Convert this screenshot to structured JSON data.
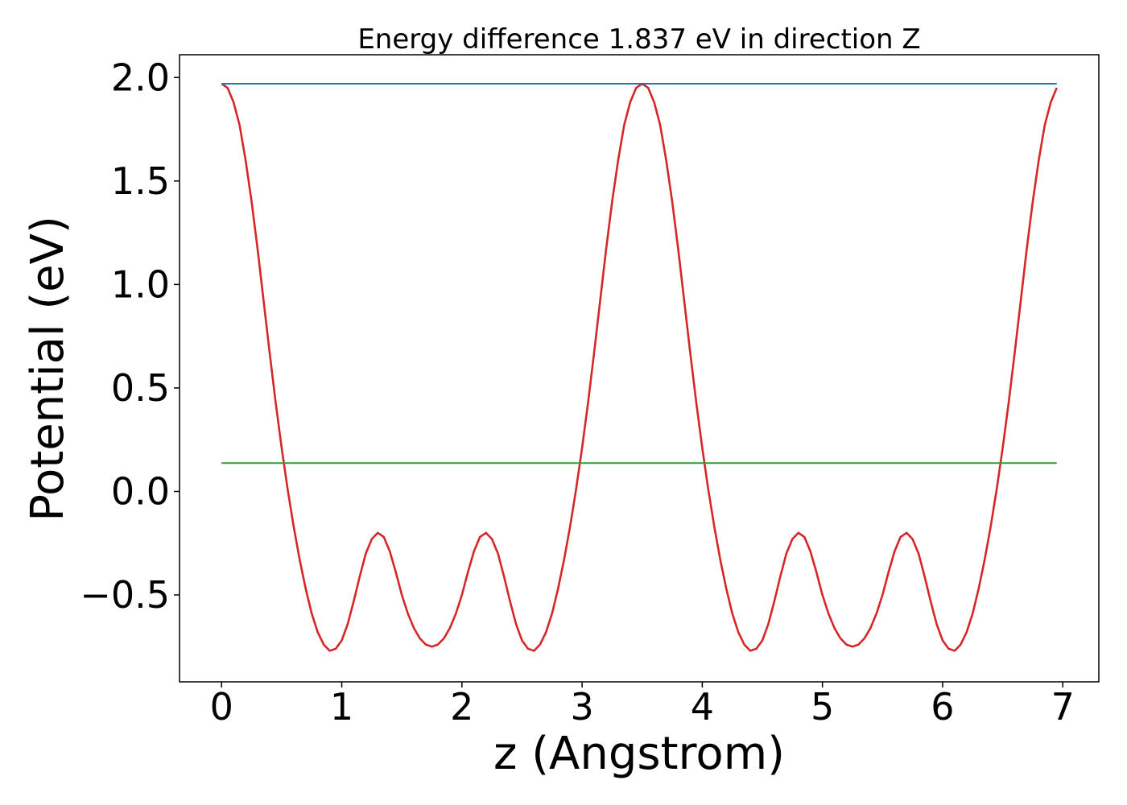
{
  "chart_data": {
    "type": "line",
    "title": "Energy difference 1.837 eV in direction Z",
    "xlabel": "z (Angstrom)",
    "ylabel": "Potential (eV)",
    "xlim": [
      -0.35,
      7.3
    ],
    "ylim": [
      -0.92,
      2.11
    ],
    "x_ticks": [
      0,
      1,
      2,
      3,
      4,
      5,
      6,
      7
    ],
    "x_tick_labels": [
      "0",
      "1",
      "2",
      "3",
      "4",
      "5",
      "6",
      "7"
    ],
    "y_ticks": [
      2.0,
      1.5,
      1.0,
      0.5,
      0.0,
      -0.5
    ],
    "y_tick_labels": [
      "2.0",
      "1.5",
      "1.0",
      "0.5",
      "0.0",
      "−0.5"
    ],
    "grid": false,
    "series": [
      {
        "color": "#d62728",
        "x": [
          0,
          0.05,
          0.1,
          0.15,
          0.2,
          0.25,
          0.3,
          0.35,
          0.4,
          0.45,
          0.5,
          0.55,
          0.6,
          0.65,
          0.7,
          0.75,
          0.8,
          0.85,
          0.9,
          0.95,
          1.0,
          1.05,
          1.1,
          1.15,
          1.2,
          1.25,
          1.3,
          1.35,
          1.4,
          1.45,
          1.5,
          1.55,
          1.6,
          1.65,
          1.7,
          1.75,
          1.8,
          1.85,
          1.9,
          1.95,
          2.0,
          2.05,
          2.1,
          2.15,
          2.2,
          2.25,
          2.3,
          2.35,
          2.4,
          2.45,
          2.5,
          2.55,
          2.6,
          2.65,
          2.7,
          2.75,
          2.8,
          2.85,
          2.9,
          2.95,
          3.0,
          3.05,
          3.1,
          3.15,
          3.2,
          3.25,
          3.3,
          3.35,
          3.4,
          3.45,
          3.5,
          3.55,
          3.6,
          3.65,
          3.7,
          3.75,
          3.8,
          3.85,
          3.9,
          3.95,
          4.0,
          4.05,
          4.1,
          4.15,
          4.2,
          4.25,
          4.3,
          4.35,
          4.4,
          4.45,
          4.5,
          4.55,
          4.6,
          4.65,
          4.7,
          4.75,
          4.8,
          4.85,
          4.9,
          4.95,
          5.0,
          5.05,
          5.1,
          5.15,
          5.2,
          5.25,
          5.3,
          5.35,
          5.4,
          5.45,
          5.5,
          5.55,
          5.6,
          5.65,
          5.7,
          5.75,
          5.8,
          5.85,
          5.9,
          5.95,
          6.0,
          6.05,
          6.1,
          6.15,
          6.2,
          6.25,
          6.3,
          6.35,
          6.4,
          6.45,
          6.5,
          6.55,
          6.6,
          6.65,
          6.7,
          6.75,
          6.8,
          6.85,
          6.9,
          6.95
        ],
        "y": [
          1.97,
          1.95,
          1.88,
          1.77,
          1.6,
          1.4,
          1.17,
          0.92,
          0.67,
          0.43,
          0.21,
          0.01,
          -0.17,
          -0.33,
          -0.47,
          -0.59,
          -0.68,
          -0.74,
          -0.77,
          -0.76,
          -0.72,
          -0.64,
          -0.53,
          -0.41,
          -0.3,
          -0.23,
          -0.2,
          -0.22,
          -0.29,
          -0.39,
          -0.5,
          -0.59,
          -0.66,
          -0.71,
          -0.74,
          -0.75,
          -0.74,
          -0.71,
          -0.66,
          -0.59,
          -0.5,
          -0.39,
          -0.29,
          -0.22,
          -0.2,
          -0.23,
          -0.3,
          -0.41,
          -0.53,
          -0.64,
          -0.72,
          -0.76,
          -0.77,
          -0.74,
          -0.68,
          -0.59,
          -0.47,
          -0.33,
          -0.17,
          0.01,
          0.21,
          0.43,
          0.67,
          0.92,
          1.17,
          1.4,
          1.6,
          1.77,
          1.88,
          1.95,
          1.97,
          1.95,
          1.88,
          1.77,
          1.6,
          1.4,
          1.17,
          0.92,
          0.67,
          0.43,
          0.21,
          0.01,
          -0.17,
          -0.33,
          -0.47,
          -0.59,
          -0.68,
          -0.74,
          -0.77,
          -0.76,
          -0.72,
          -0.64,
          -0.53,
          -0.41,
          -0.3,
          -0.23,
          -0.2,
          -0.22,
          -0.29,
          -0.39,
          -0.5,
          -0.59,
          -0.66,
          -0.71,
          -0.74,
          -0.75,
          -0.74,
          -0.71,
          -0.66,
          -0.59,
          -0.5,
          -0.39,
          -0.29,
          -0.22,
          -0.2,
          -0.23,
          -0.3,
          -0.41,
          -0.53,
          -0.64,
          -0.72,
          -0.76,
          -0.77,
          -0.74,
          -0.68,
          -0.59,
          -0.47,
          -0.33,
          -0.17,
          0.01,
          0.21,
          0.43,
          0.67,
          0.92,
          1.17,
          1.4,
          1.6,
          1.77,
          1.88,
          1.95
        ]
      },
      {
        "color": "#1f77b4",
        "x": [
          0,
          6.95
        ],
        "y": [
          1.97,
          1.97
        ]
      },
      {
        "color": "#2ca02c",
        "x": [
          0,
          6.95
        ],
        "y": [
          0.137,
          0.137
        ]
      }
    ]
  }
}
